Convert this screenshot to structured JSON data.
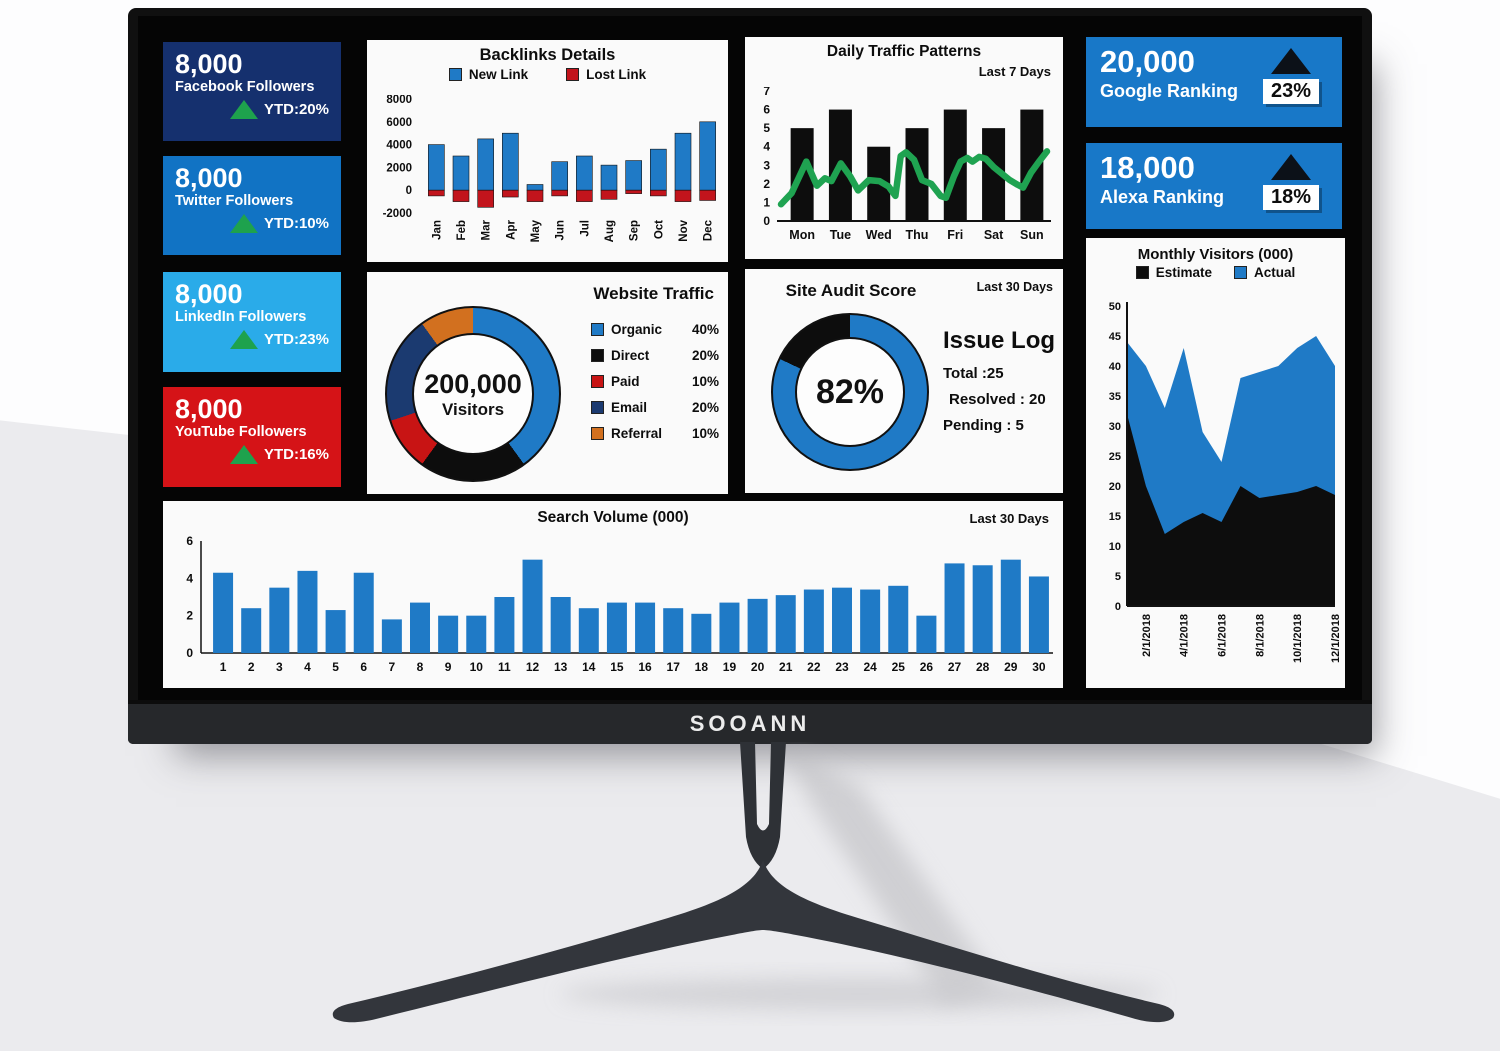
{
  "monitor": {
    "brand": "SOOANN"
  },
  "kpi_cards": [
    {
      "value": "8,000",
      "label": "Facebook Followers",
      "ytd": "YTD:20%",
      "bg": "#15306e"
    },
    {
      "value": "8,000",
      "label": "Twitter Followers",
      "ytd": "YTD:10%",
      "bg": "#1173c4"
    },
    {
      "value": "8,000",
      "label": "LinkedIn Followers",
      "ytd": "YTD:23%",
      "bg": "#2aabe9"
    },
    {
      "value": "8,000",
      "label": "YouTube Followers",
      "ytd": "YTD:16%",
      "bg": "#d51317"
    }
  ],
  "ranking_cards": [
    {
      "value": "20,000",
      "label": "Google Ranking",
      "pct": "23%",
      "bg": "#1878c8"
    },
    {
      "value": "18,000",
      "label": "Alexa Ranking",
      "pct": "18%",
      "bg": "#1878c8"
    }
  ],
  "panels": {
    "backlinks": {
      "title": "Backlinks Details"
    },
    "daily": {
      "title": "Daily Traffic Patterns",
      "subtitle": "Last 7 Days"
    },
    "website_traffic": {
      "title": "Website Traffic",
      "center_value": "200,000",
      "center_label": "Visitors"
    },
    "site_audit": {
      "title": "Site Audit Score",
      "subtitle": "Last 30 Days",
      "score": "82%",
      "issue_log_title": "Issue Log",
      "issue_lines": [
        "Total :25",
        "Resolved : 20",
        "Pending : 5"
      ]
    },
    "monthly": {
      "title": "Monthly Visitors (000)"
    },
    "search": {
      "title": "Search Volume (000)",
      "subtitle": "Last 30 Days"
    }
  },
  "chart_data": [
    {
      "id": "backlinks",
      "type": "bar",
      "title": "Backlinks Details",
      "categories": [
        "Jan",
        "Feb",
        "Mar",
        "Apr",
        "May",
        "Jun",
        "Jul",
        "Aug",
        "Sep",
        "Oct",
        "Nov",
        "Dec"
      ],
      "series": [
        {
          "name": "New Link",
          "color": "#1f7ac6",
          "values": [
            4000,
            3000,
            4500,
            5000,
            500,
            2500,
            3000,
            2200,
            2600,
            3600,
            5000,
            6000
          ]
        },
        {
          "name": "Lost Link",
          "color": "#c2141c",
          "values": [
            -500,
            -1000,
            -1500,
            -600,
            -1000,
            -500,
            -1000,
            -800,
            -300,
            -500,
            -1000,
            -900
          ]
        }
      ],
      "ylim": [
        -2000,
        8000
      ],
      "yticks": [
        8000,
        6000,
        4000,
        2000,
        0,
        -2000
      ],
      "legend_position": "top"
    },
    {
      "id": "daily",
      "type": "bar+line",
      "title": "Daily Traffic Patterns",
      "subtitle": "Last 7 Days",
      "categories": [
        "Mon",
        "Tue",
        "Wed",
        "Thu",
        "Fri",
        "Sat",
        "Sun"
      ],
      "bar_color": "#0d0d0d",
      "bars": [
        5,
        6,
        4,
        5,
        6,
        5,
        6
      ],
      "line_color": "#1fa351",
      "line": [
        [
          0,
          0.9
        ],
        [
          0.04,
          1.5
        ],
        [
          0.095,
          3.2
        ],
        [
          0.135,
          1.9
        ],
        [
          0.165,
          2.3
        ],
        [
          0.19,
          2.15
        ],
        [
          0.225,
          3.1
        ],
        [
          0.26,
          2.4
        ],
        [
          0.29,
          1.65
        ],
        [
          0.33,
          2.2
        ],
        [
          0.37,
          2.15
        ],
        [
          0.405,
          1.85
        ],
        [
          0.43,
          1.35
        ],
        [
          0.45,
          3.5
        ],
        [
          0.47,
          3.7
        ],
        [
          0.5,
          3.3
        ],
        [
          0.53,
          2.2
        ],
        [
          0.565,
          2.0
        ],
        [
          0.6,
          1.35
        ],
        [
          0.62,
          1.25
        ],
        [
          0.65,
          2.4
        ],
        [
          0.675,
          3.2
        ],
        [
          0.7,
          3.4
        ],
        [
          0.72,
          3.2
        ],
        [
          0.745,
          3.45
        ],
        [
          0.77,
          3.35
        ],
        [
          0.8,
          2.9
        ],
        [
          0.83,
          2.55
        ],
        [
          0.86,
          2.2
        ],
        [
          0.89,
          1.95
        ],
        [
          0.91,
          1.8
        ],
        [
          0.94,
          2.6
        ],
        [
          0.97,
          3.2
        ],
        [
          1,
          3.75
        ]
      ],
      "ylim": [
        0,
        7
      ],
      "yticks": [
        0,
        1,
        2,
        3,
        4,
        5,
        6,
        7
      ]
    },
    {
      "id": "website_traffic",
      "type": "pie",
      "title": "Website Traffic",
      "center_value": "200,000",
      "center_label": "Visitors",
      "slices": [
        {
          "label": "Organic",
          "value": 40,
          "color": "#1f7ac6"
        },
        {
          "label": "Direct",
          "value": 20,
          "color": "#0d0d0d"
        },
        {
          "label": "Paid",
          "value": 10,
          "color": "#c81414"
        },
        {
          "label": "Email",
          "value": 20,
          "color": "#1b3a70"
        },
        {
          "label": "Referral",
          "value": 10,
          "color": "#d2701f"
        }
      ]
    },
    {
      "id": "site_audit",
      "type": "pie",
      "title": "Site Audit Score",
      "subtitle": "Last 30 Days",
      "value": 82,
      "color": "#1f7ac6",
      "rest_color": "#0d0d0d",
      "issue_log": {
        "total": 25,
        "resolved": 20,
        "pending": 5
      }
    },
    {
      "id": "monthly",
      "type": "area",
      "title": "Monthly Visitors (000)",
      "series": [
        {
          "name": "Estimate",
          "color": "#0d0d0d",
          "values": [
            32,
            20,
            12,
            14,
            15.5,
            14,
            20,
            18,
            18.5,
            19,
            20,
            18.5
          ]
        },
        {
          "name": "Actual",
          "color": "#1f7ac6",
          "values": [
            44,
            40,
            33,
            43,
            29,
            24,
            38,
            39,
            40,
            43,
            45,
            40
          ]
        }
      ],
      "x_labels": [
        "2/1/2018",
        "4/1/2018",
        "6/1/2018",
        "8/1/2018",
        "10/1/2018",
        "12/1/2018"
      ],
      "x_label_indices": [
        1,
        3,
        5,
        7,
        9,
        11
      ],
      "ylim": [
        0,
        50
      ],
      "yticks": [
        0,
        5,
        10,
        15,
        20,
        25,
        30,
        35,
        40,
        45,
        50
      ]
    },
    {
      "id": "search",
      "type": "bar",
      "title": "Search Volume (000)",
      "subtitle": "Last 30 Days",
      "color": "#1f7ac6",
      "categories": [
        "1",
        "2",
        "3",
        "4",
        "5",
        "6",
        "7",
        "8",
        "9",
        "10",
        "11",
        "12",
        "13",
        "14",
        "15",
        "16",
        "17",
        "18",
        "19",
        "20",
        "21",
        "22",
        "23",
        "24",
        "25",
        "26",
        "27",
        "28",
        "29",
        "30"
      ],
      "values": [
        4.3,
        2.4,
        3.5,
        4.4,
        2.3,
        4.3,
        1.8,
        2.7,
        2.0,
        2.0,
        3.0,
        5.0,
        3.0,
        2.4,
        2.7,
        2.7,
        2.4,
        2.1,
        2.7,
        2.9,
        3.1,
        3.4,
        3.5,
        3.4,
        3.6,
        2.0,
        4.8,
        4.7,
        5.0,
        4.1
      ],
      "ylim": [
        0,
        6
      ],
      "yticks": [
        0,
        2,
        4,
        6
      ]
    }
  ]
}
